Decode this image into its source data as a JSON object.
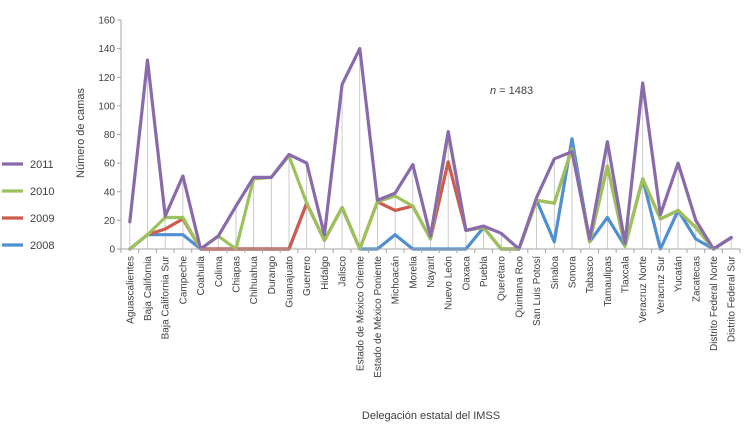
{
  "chart_data": {
    "type": "line",
    "xlabel": "Delegación estatal del IMSS",
    "ylabel": "Número de camas",
    "ylim": [
      0,
      160
    ],
    "yticks": [
      0,
      20,
      40,
      60,
      80,
      100,
      120,
      140,
      160
    ],
    "annotation": "n = 1483",
    "legend_position": "left",
    "grid": false,
    "categories": [
      "Aguascalientes",
      "Baja California",
      "Baja California Sur",
      "Campeche",
      "Coahuila",
      "Colima",
      "Chiapas",
      "Chihuahua",
      "Durango",
      "Guanajuato",
      "Guerrero",
      "Hidalgo",
      "Jalisco",
      "Estado de México Oriente",
      "Estado de México Poniente",
      "Michoacán",
      "Morelia",
      "Nayarit",
      "Nuevo León",
      "Oaxaca",
      "Puebla",
      "Querétaro",
      "Quintana Roo",
      "San Luis Potosí",
      "Sinaloa",
      "Sonora",
      "Tabasco",
      "Tamaulipas",
      "Tlaxcala",
      "Veracruz Norte",
      "Veracruz Sur",
      "Yucatán",
      "Zacatecas",
      "Distrito Federal Norte",
      "Distrito Federal Sur"
    ],
    "series": [
      {
        "name": "2008",
        "color": "#4f8fd2",
        "values": [
          0,
          10,
          10,
          10,
          0,
          0,
          0,
          0,
          0,
          0,
          32,
          6,
          29,
          0,
          0,
          10,
          0,
          0,
          0,
          0,
          15,
          0,
          0,
          34,
          5,
          77,
          5,
          22,
          2,
          49,
          0,
          27,
          7,
          0,
          8
        ]
      },
      {
        "name": "2009",
        "color": "#cf5a4e",
        "values": [
          0,
          10,
          14,
          21,
          0,
          0,
          0,
          0,
          0,
          0,
          32,
          6,
          29,
          0,
          33,
          27,
          30,
          7,
          61,
          13,
          15,
          0,
          0,
          34,
          32,
          70,
          5,
          58,
          2,
          49,
          21,
          27,
          15,
          0,
          8
        ]
      },
      {
        "name": "2010",
        "color": "#9cc35b",
        "values": [
          0,
          10,
          22,
          22,
          0,
          9,
          0,
          49,
          50,
          65,
          32,
          6,
          29,
          0,
          33,
          37,
          30,
          7,
          81,
          13,
          15,
          0,
          0,
          34,
          32,
          70,
          5,
          58,
          2,
          49,
          21,
          27,
          15,
          0,
          8
        ]
      },
      {
        "name": "2011",
        "color": "#8a6aab",
        "values": [
          19,
          132,
          23,
          51,
          0,
          9,
          30,
          50,
          50,
          66,
          60,
          10,
          115,
          140,
          34,
          39,
          59,
          9,
          82,
          13,
          16,
          11,
          0,
          36,
          63,
          68,
          7,
          75,
          4,
          116,
          24,
          60,
          20,
          0,
          8
        ]
      }
    ]
  }
}
